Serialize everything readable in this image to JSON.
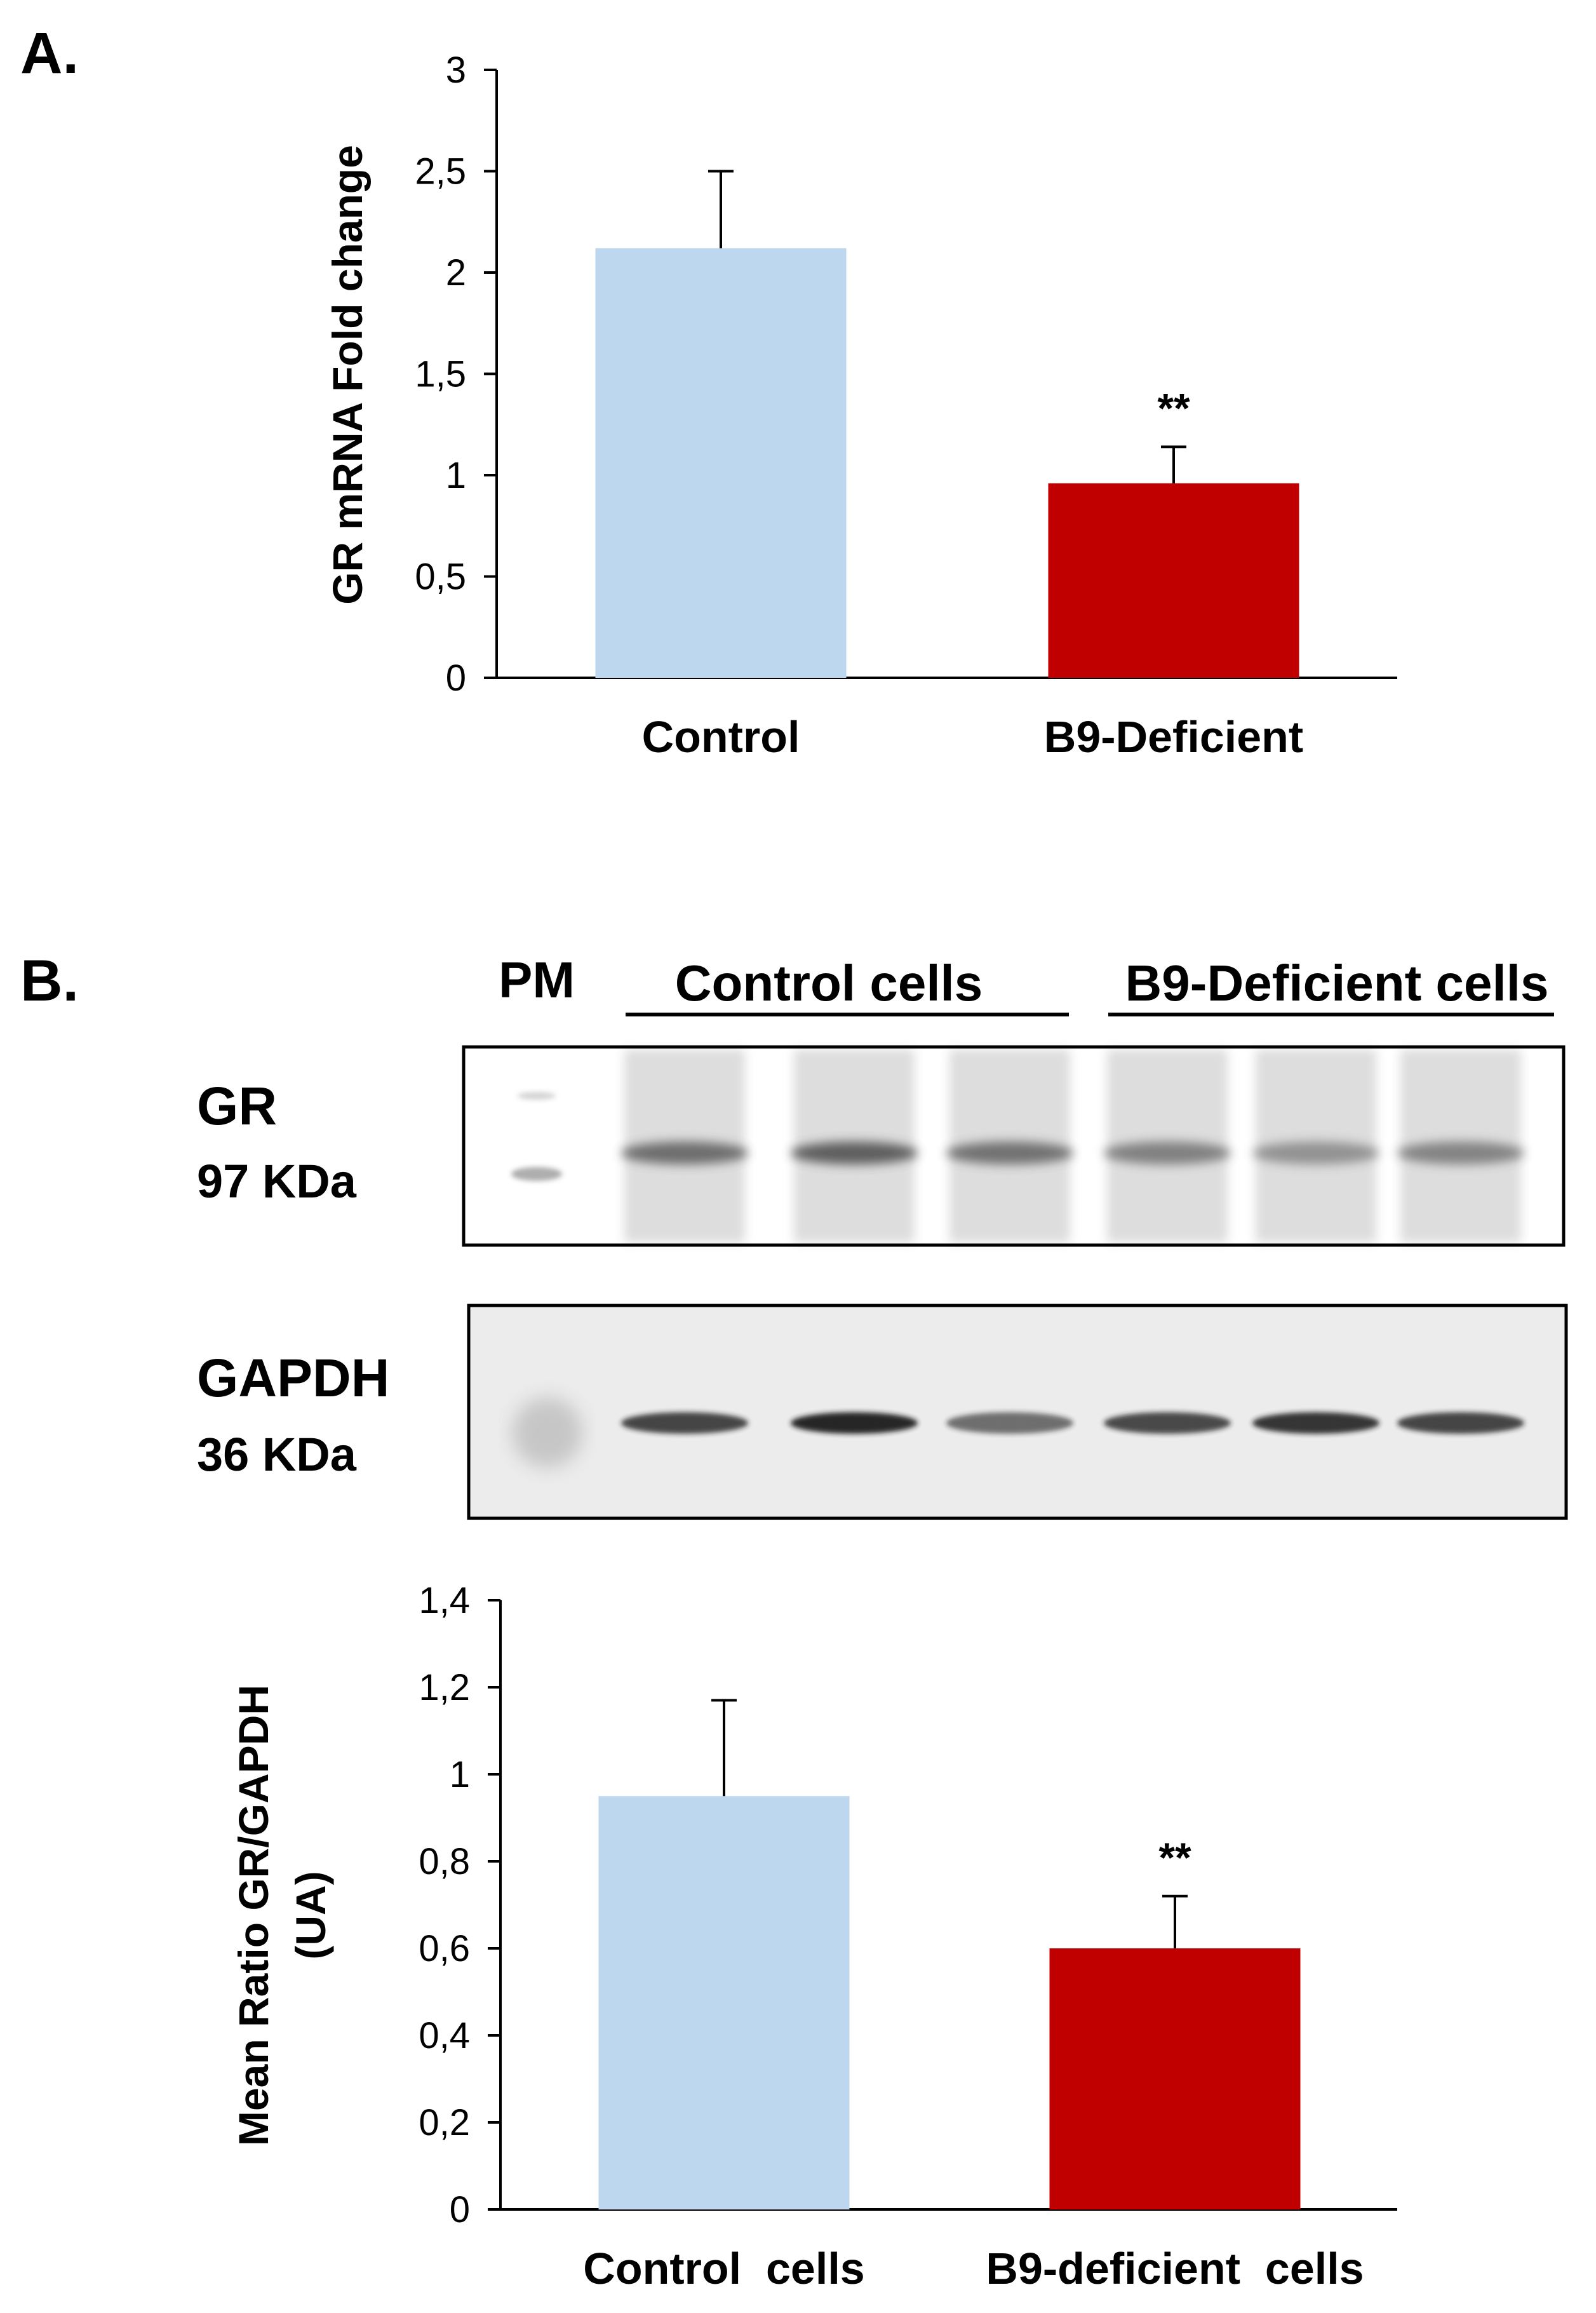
{
  "panel_a": {
    "letter": "A."
  },
  "panel_b": {
    "letter": "B.",
    "blot": {
      "marker_label": "PM",
      "group_control": "Control cells",
      "group_deficient": "B9-Deficient cells",
      "gr_name": "GR",
      "gr_weight": "97 KDa",
      "gapdh_name": "GAPDH",
      "gapdh_weight": "36 KDa"
    }
  },
  "colors": {
    "control": "#bdd7ee",
    "deficient": "#c00000",
    "axis": "#000000"
  },
  "chart_data": [
    {
      "type": "bar",
      "categories": [
        "Control",
        "B9-Deficient"
      ],
      "values": [
        2.12,
        0.96
      ],
      "errors": [
        0.38,
        0.18
      ],
      "significance": [
        "",
        "**"
      ],
      "ylabel": "GR mRNA Fold change",
      "ylim": [
        0,
        3
      ],
      "yticks": [
        "0",
        "0,5",
        "1",
        "1,5",
        "2",
        "2,5",
        "3"
      ],
      "ytick_values": [
        0,
        0.5,
        1,
        1.5,
        2,
        2.5,
        3
      ],
      "grid": false,
      "legend": "none"
    },
    {
      "type": "bar",
      "categories": [
        "Control  cells",
        "B9-deficient  cells"
      ],
      "values": [
        0.95,
        0.6
      ],
      "errors": [
        0.22,
        0.12
      ],
      "significance": [
        "",
        "**"
      ],
      "ylabel_line1": "Mean Ratio GR/GAPDH",
      "ylabel_line2": "(UA)",
      "ylim": [
        0,
        1.4
      ],
      "yticks": [
        "0",
        "0,2",
        "0,4",
        "0,6",
        "0,8",
        "1",
        "1,2",
        "1,4"
      ],
      "ytick_values": [
        0,
        0.2,
        0.4,
        0.6,
        0.8,
        1.0,
        1.2,
        1.4
      ],
      "grid": false,
      "legend": "none"
    }
  ]
}
